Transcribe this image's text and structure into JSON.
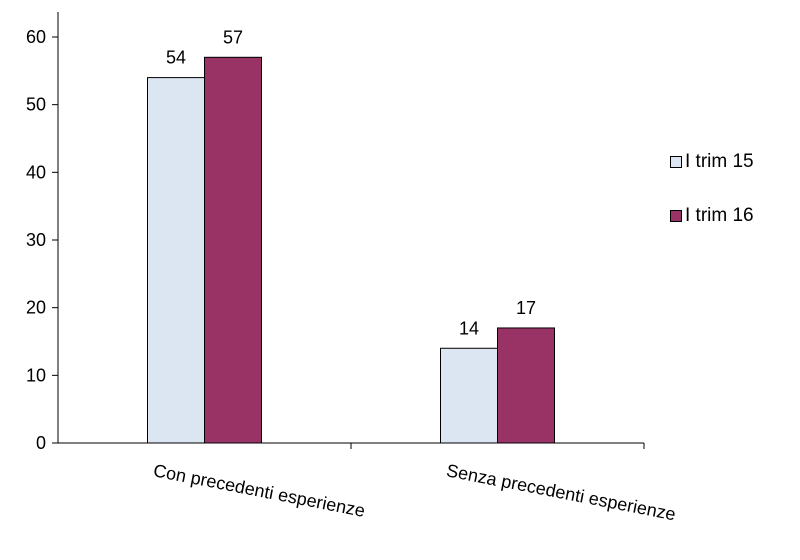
{
  "chart_data": {
    "type": "bar",
    "categories": [
      "Con precedenti esperienze",
      "Senza precedenti esperienze"
    ],
    "series": [
      {
        "name": "I trim 15",
        "values": [
          54,
          14
        ],
        "color": "#dce6f2"
      },
      {
        "name": "I trim 16",
        "values": [
          57,
          17
        ],
        "color": "#993366"
      }
    ],
    "ylim": [
      0,
      60
    ],
    "yticks": [
      "0",
      "10",
      "20",
      "30",
      "40",
      "50",
      "60"
    ],
    "grid": false,
    "legend_position": "right",
    "title": "",
    "xlabel": "",
    "ylabel": ""
  }
}
